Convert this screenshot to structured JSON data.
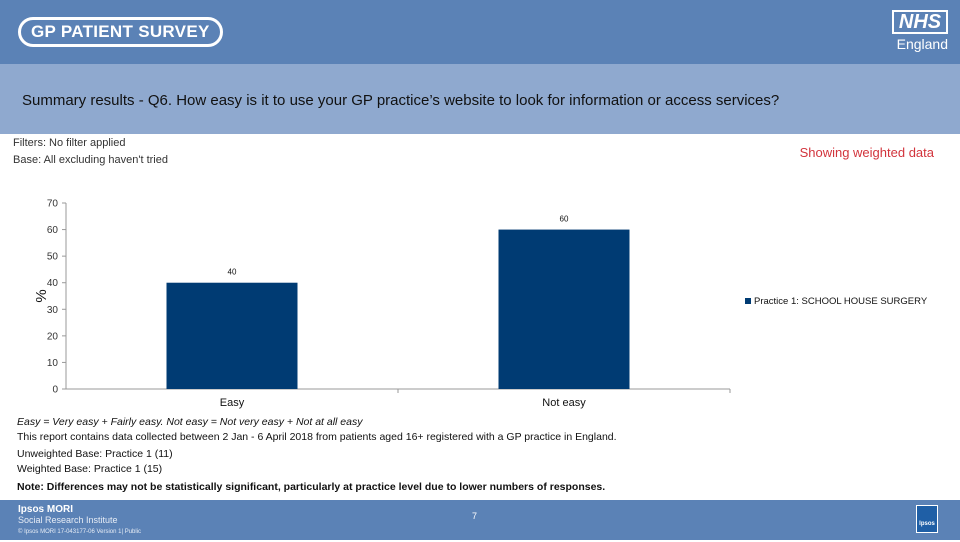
{
  "header": {
    "survey_logo": "GP PATIENT SURVEY",
    "nhs_logo": "NHS",
    "nhs_subtitle": "England"
  },
  "title": "Summary results - Q6.  How easy is it to use your GP practice’s  website to look for information or access  services?",
  "filters": "Filters: No filter applied",
  "base": "Base: All excluding haven't tried",
  "weighted_note": "Showing weighted data",
  "colors": {
    "bar": "#003b73",
    "header": "#5b82b6",
    "title_band": "#8fa9cf",
    "weighted_note": "#d2343c"
  },
  "chart_data": {
    "type": "bar",
    "categories": [
      "Easy",
      "Not easy"
    ],
    "series": [
      {
        "name": "Practice 1: SCHOOL HOUSE SURGERY",
        "values": [
          40,
          60
        ]
      }
    ],
    "data_labels": [
      "40",
      "60"
    ],
    "ylabel": "%",
    "ylim": [
      0,
      70
    ],
    "yticks": [
      "0",
      "10",
      "20",
      "30",
      "40",
      "50",
      "60",
      "70"
    ],
    "legend": "right",
    "grid": false
  },
  "notes": {
    "definition": "Easy = Very easy + Fairly easy. Not easy = Not very easy + Not at all easy",
    "collection": "This report contains data collected between 2 Jan - 6 April 2018 from patients aged 16+ registered with a GP practice in England.",
    "unweighted": "Unweighted Base: Practice 1 (11)",
    "weighted": "Weighted Base: Practice 1 (15)",
    "significance": "Note: Differences may not be statistically significant, particularly at practice level due to lower numbers of responses."
  },
  "footer": {
    "ipsos_mori": "Ipsos MORI",
    "institute": "Social Research Institute",
    "copyright": "© Ipsos MORI       17-043177-06 Version 1| Public",
    "page_number": "7",
    "ipsos_logo": "Ipsos"
  }
}
